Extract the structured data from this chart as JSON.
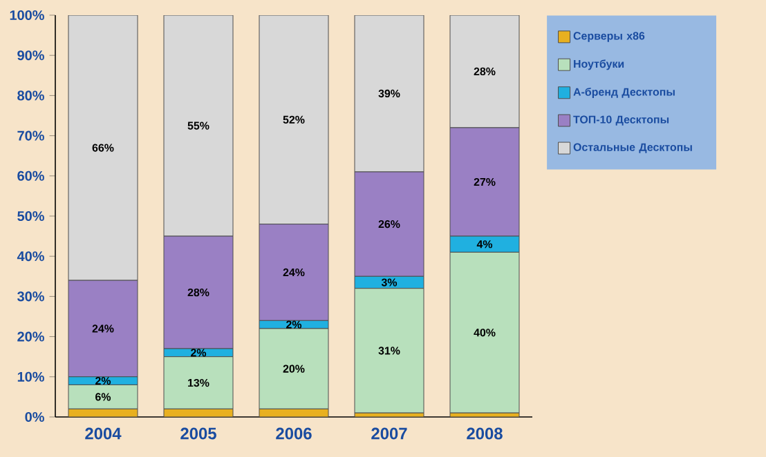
{
  "chart_data": {
    "type": "bar",
    "stacked": true,
    "categories": [
      "2004",
      "2005",
      "2006",
      "2007",
      "2008"
    ],
    "ylim": [
      0,
      100
    ],
    "yticks": [
      {
        "value": 0,
        "label": "0%"
      },
      {
        "value": 10,
        "label": "10%"
      },
      {
        "value": 20,
        "label": "20%"
      },
      {
        "value": 30,
        "label": "30%"
      },
      {
        "value": 40,
        "label": "40%"
      },
      {
        "value": 50,
        "label": "50%"
      },
      {
        "value": 60,
        "label": "60%"
      },
      {
        "value": 70,
        "label": "70%"
      },
      {
        "value": 80,
        "label": "80%"
      },
      {
        "value": 90,
        "label": "90%"
      },
      {
        "value": 100,
        "label": "100%"
      }
    ],
    "legend": "top right",
    "series": [
      {
        "name": "Серверы x86",
        "color": "#e8b020",
        "values": [
          2,
          2,
          2,
          1,
          1
        ],
        "value_labels": [
          null,
          null,
          null,
          null,
          null
        ]
      },
      {
        "name": "Ноутбуки",
        "color": "#b8e0bc",
        "values": [
          6,
          13,
          20,
          31,
          40
        ],
        "value_labels": [
          "6%",
          "13%",
          "20%",
          "31%",
          "40%"
        ]
      },
      {
        "name": "А-бренд Десктопы",
        "color": "#20b0e0",
        "values": [
          2,
          2,
          2,
          3,
          4
        ],
        "value_labels": [
          "2%",
          "2%",
          "2%",
          "3%",
          "4%"
        ]
      },
      {
        "name": "ТОП-10 Десктопы",
        "color": "#9a80c4",
        "values": [
          24,
          28,
          24,
          26,
          27
        ],
        "value_labels": [
          "24%",
          "28%",
          "24%",
          "26%",
          "27%"
        ]
      },
      {
        "name": "Остальные Десктопы",
        "color": "#d8d8d8",
        "values": [
          66,
          55,
          52,
          39,
          28
        ],
        "value_labels": [
          "66%",
          "55%",
          "52%",
          "39%",
          "28%"
        ]
      }
    ]
  }
}
